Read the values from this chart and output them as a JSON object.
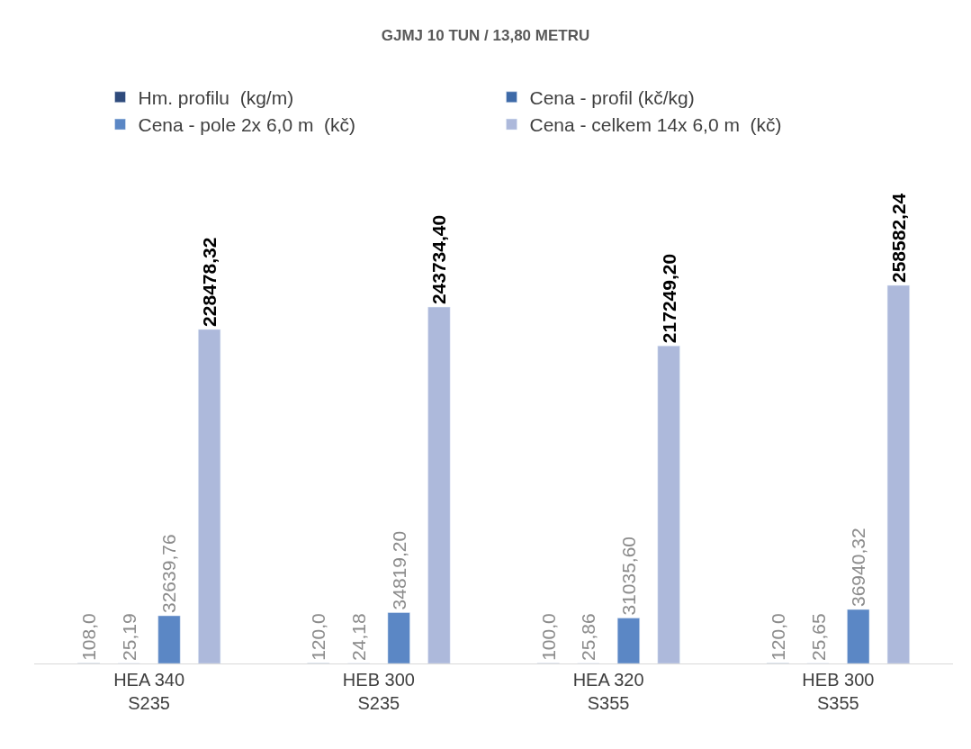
{
  "chart_data": {
    "type": "bar",
    "title": "GJMJ 10 TUN / 13,80 METRU",
    "categories": [
      "HEA 340\nS235",
      "HEB 300\nS235",
      "HEA 320\nS355",
      "HEB 300\nS355"
    ],
    "series": [
      {
        "name": "Hm. profilu  (kg/m)",
        "color": "#2f4b7c",
        "values": [
          108.0,
          120.0,
          100.0,
          120.0
        ],
        "value_labels": [
          "108,0",
          "120,0",
          "100,0",
          "120,0"
        ]
      },
      {
        "name": "Cena - profil (kč/kg)",
        "color": "#3e6aa8",
        "values": [
          25.19,
          24.18,
          25.86,
          25.65
        ],
        "value_labels": [
          "25,19",
          "24,18",
          "25,86",
          "25,65"
        ]
      },
      {
        "name": "Cena - pole 2x 6,0 m  (kč)",
        "color": "#5b87c5",
        "values": [
          32639.76,
          34819.2,
          31035.6,
          36940.32
        ],
        "value_labels": [
          "32639,76",
          "34819,20",
          "31035,60",
          "36940,32"
        ]
      },
      {
        "name": "Cena - celkem 14x 6,0 m  (kč)",
        "color": "#adb9db",
        "values": [
          228478.32,
          243734.4,
          217249.2,
          258582.24
        ],
        "value_labels": [
          "228478,32",
          "243734,40",
          "217249,20",
          "258582,24"
        ]
      }
    ],
    "legend": "top"
  }
}
